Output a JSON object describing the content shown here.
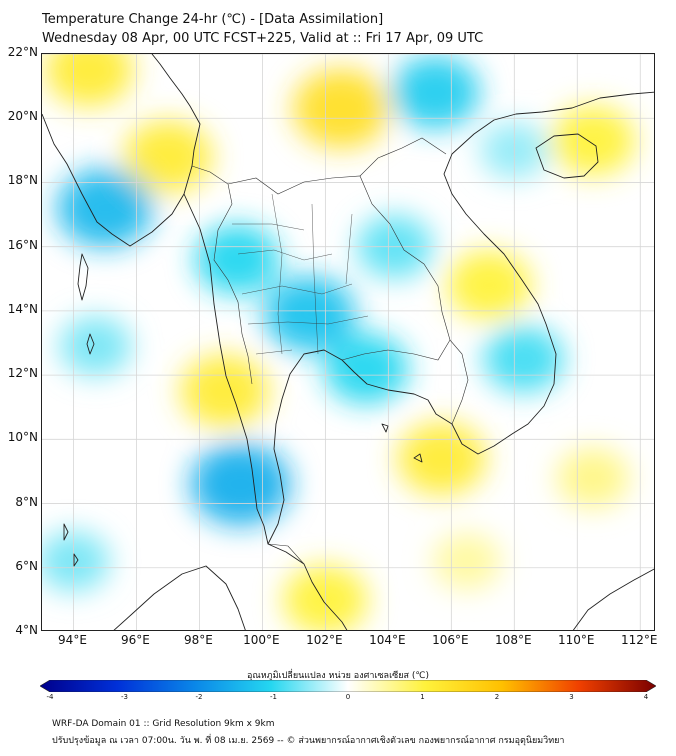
{
  "header": {
    "title": "Temperature Change 24-hr (℃) - [Data Assimilation]",
    "subtitle": "Wednesday 08 Apr, 00 UTC FCST+225, Valid at :: Fri 17 Apr, 09 UTC"
  },
  "map": {
    "lat_range": [
      4,
      22
    ],
    "lon_range": [
      93,
      112.5
    ],
    "lat_labels": [
      "22°N",
      "20°N",
      "18°N",
      "16°N",
      "14°N",
      "12°N",
      "10°N",
      "8°N",
      "6°N",
      "4°N"
    ],
    "lat_values": [
      22,
      20,
      18,
      16,
      14,
      12,
      10,
      8,
      6,
      4
    ],
    "lon_labels": [
      "94°E",
      "96°E",
      "98°E",
      "100°E",
      "102°E",
      "104°E",
      "106°E",
      "108°E",
      "110°E",
      "112°E"
    ],
    "lon_values": [
      94,
      96,
      98,
      100,
      102,
      104,
      106,
      108,
      110,
      112
    ],
    "grid": true,
    "field_anomalies": [
      {
        "lat": 20.3,
        "lon": 102.5,
        "value": 1.1
      },
      {
        "lat": 21.5,
        "lon": 94.5,
        "value": 0.9
      },
      {
        "lat": 18.8,
        "lon": 97.0,
        "value": 0.9
      },
      {
        "lat": 19.3,
        "lon": 110.5,
        "value": 0.8
      },
      {
        "lat": 14.8,
        "lon": 107.2,
        "value": 0.8
      },
      {
        "lat": 11.5,
        "lon": 98.8,
        "value": 0.9
      },
      {
        "lat": 9.4,
        "lon": 105.7,
        "value": 0.9
      },
      {
        "lat": 5.0,
        "lon": 102.0,
        "value": 0.8
      },
      {
        "lat": 8.8,
        "lon": 110.5,
        "value": 0.5
      },
      {
        "lat": 6.2,
        "lon": 106.5,
        "value": 0.4
      },
      {
        "lat": 17.2,
        "lon": 95.0,
        "value": -1.1
      },
      {
        "lat": 8.6,
        "lon": 99.3,
        "value": -1.2
      },
      {
        "lat": 13.9,
        "lon": 101.5,
        "value": -1.0
      },
      {
        "lat": 15.6,
        "lon": 99.2,
        "value": -0.8
      },
      {
        "lat": 20.8,
        "lon": 105.5,
        "value": -0.9
      },
      {
        "lat": 12.2,
        "lon": 103.3,
        "value": -0.8
      },
      {
        "lat": 12.5,
        "lon": 108.3,
        "value": -0.7
      },
      {
        "lat": 16.0,
        "lon": 104.2,
        "value": -0.6
      },
      {
        "lat": 12.9,
        "lon": 94.7,
        "value": -0.5
      },
      {
        "lat": 6.2,
        "lon": 94.0,
        "value": -0.5
      },
      {
        "lat": 19.0,
        "lon": 108.0,
        "value": -0.4
      }
    ]
  },
  "colorbar": {
    "title": "อุณหภูมิเปลี่ยนแปลง หน่วย องศาเซลเซียส (℃)",
    "min": -4,
    "max": 4,
    "ticks": [
      "-4",
      "-3",
      "-2",
      "-1",
      "0",
      "1",
      "2",
      "3",
      "4"
    ],
    "tick_values": [
      -4,
      -3,
      -2,
      -1,
      0,
      1,
      2,
      3,
      4
    ],
    "colors": [
      "#00008b",
      "#0030d8",
      "#0a86e8",
      "#25d7f0",
      "#ffffff",
      "#fff23c",
      "#ffc000",
      "#f04000",
      "#7a0000"
    ]
  },
  "footer": {
    "line1": "WRF-DA Domain 01 :: Grid Resolution 9km x 9km",
    "line2": "ปรับปรุงข้อมูล ณ เวลา 07:00น. วัน พ. ที่ 08 เม.ย. 2569 -- © ส่วนพยากรณ์อากาศเชิงตัวเลข กองพยากรณ์อากาศ กรมอุตุนิยมวิทยา"
  },
  "colors": {
    "grid": "#d6d6d6",
    "coastline": "#222222",
    "border": "#333333"
  }
}
